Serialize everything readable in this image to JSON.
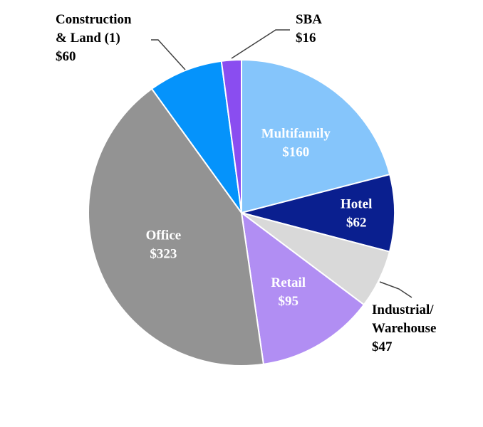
{
  "chart_data": {
    "type": "pie",
    "title": "",
    "start_angle_deg": 0,
    "direction": "clockwise",
    "slices": [
      {
        "name": "Multifamily",
        "value_label": "$160",
        "value": 160,
        "color": "#85c5fb",
        "label_color": "#ffffff",
        "label_position": "inside"
      },
      {
        "name": "Hotel",
        "value_label": "$62",
        "value": 62,
        "color": "#0a1f8f",
        "label_color": "#ffffff",
        "label_position": "inside"
      },
      {
        "name": "Industrial/",
        "name_line2": "Warehouse",
        "value_label": "$47",
        "value": 47,
        "color": "#d9d9d9",
        "label_color": "#000000",
        "label_position": "outside"
      },
      {
        "name": "Retail",
        "value_label": "$95",
        "value": 95,
        "color": "#b18ef3",
        "label_color": "#ffffff",
        "label_position": "inside"
      },
      {
        "name": "Office",
        "value_label": "$323",
        "value": 323,
        "color": "#939393",
        "label_color": "#ffffff",
        "label_position": "inside"
      },
      {
        "name": "Construction",
        "name_line2": "& Land (1)",
        "value_label": "$60",
        "value": 60,
        "color": "#0593fb",
        "label_color": "#000000",
        "label_position": "outside"
      },
      {
        "name": "SBA",
        "value_label": "$16",
        "value": 16,
        "color": "#8a4df0",
        "label_color": "#000000",
        "label_position": "outside"
      }
    ]
  }
}
